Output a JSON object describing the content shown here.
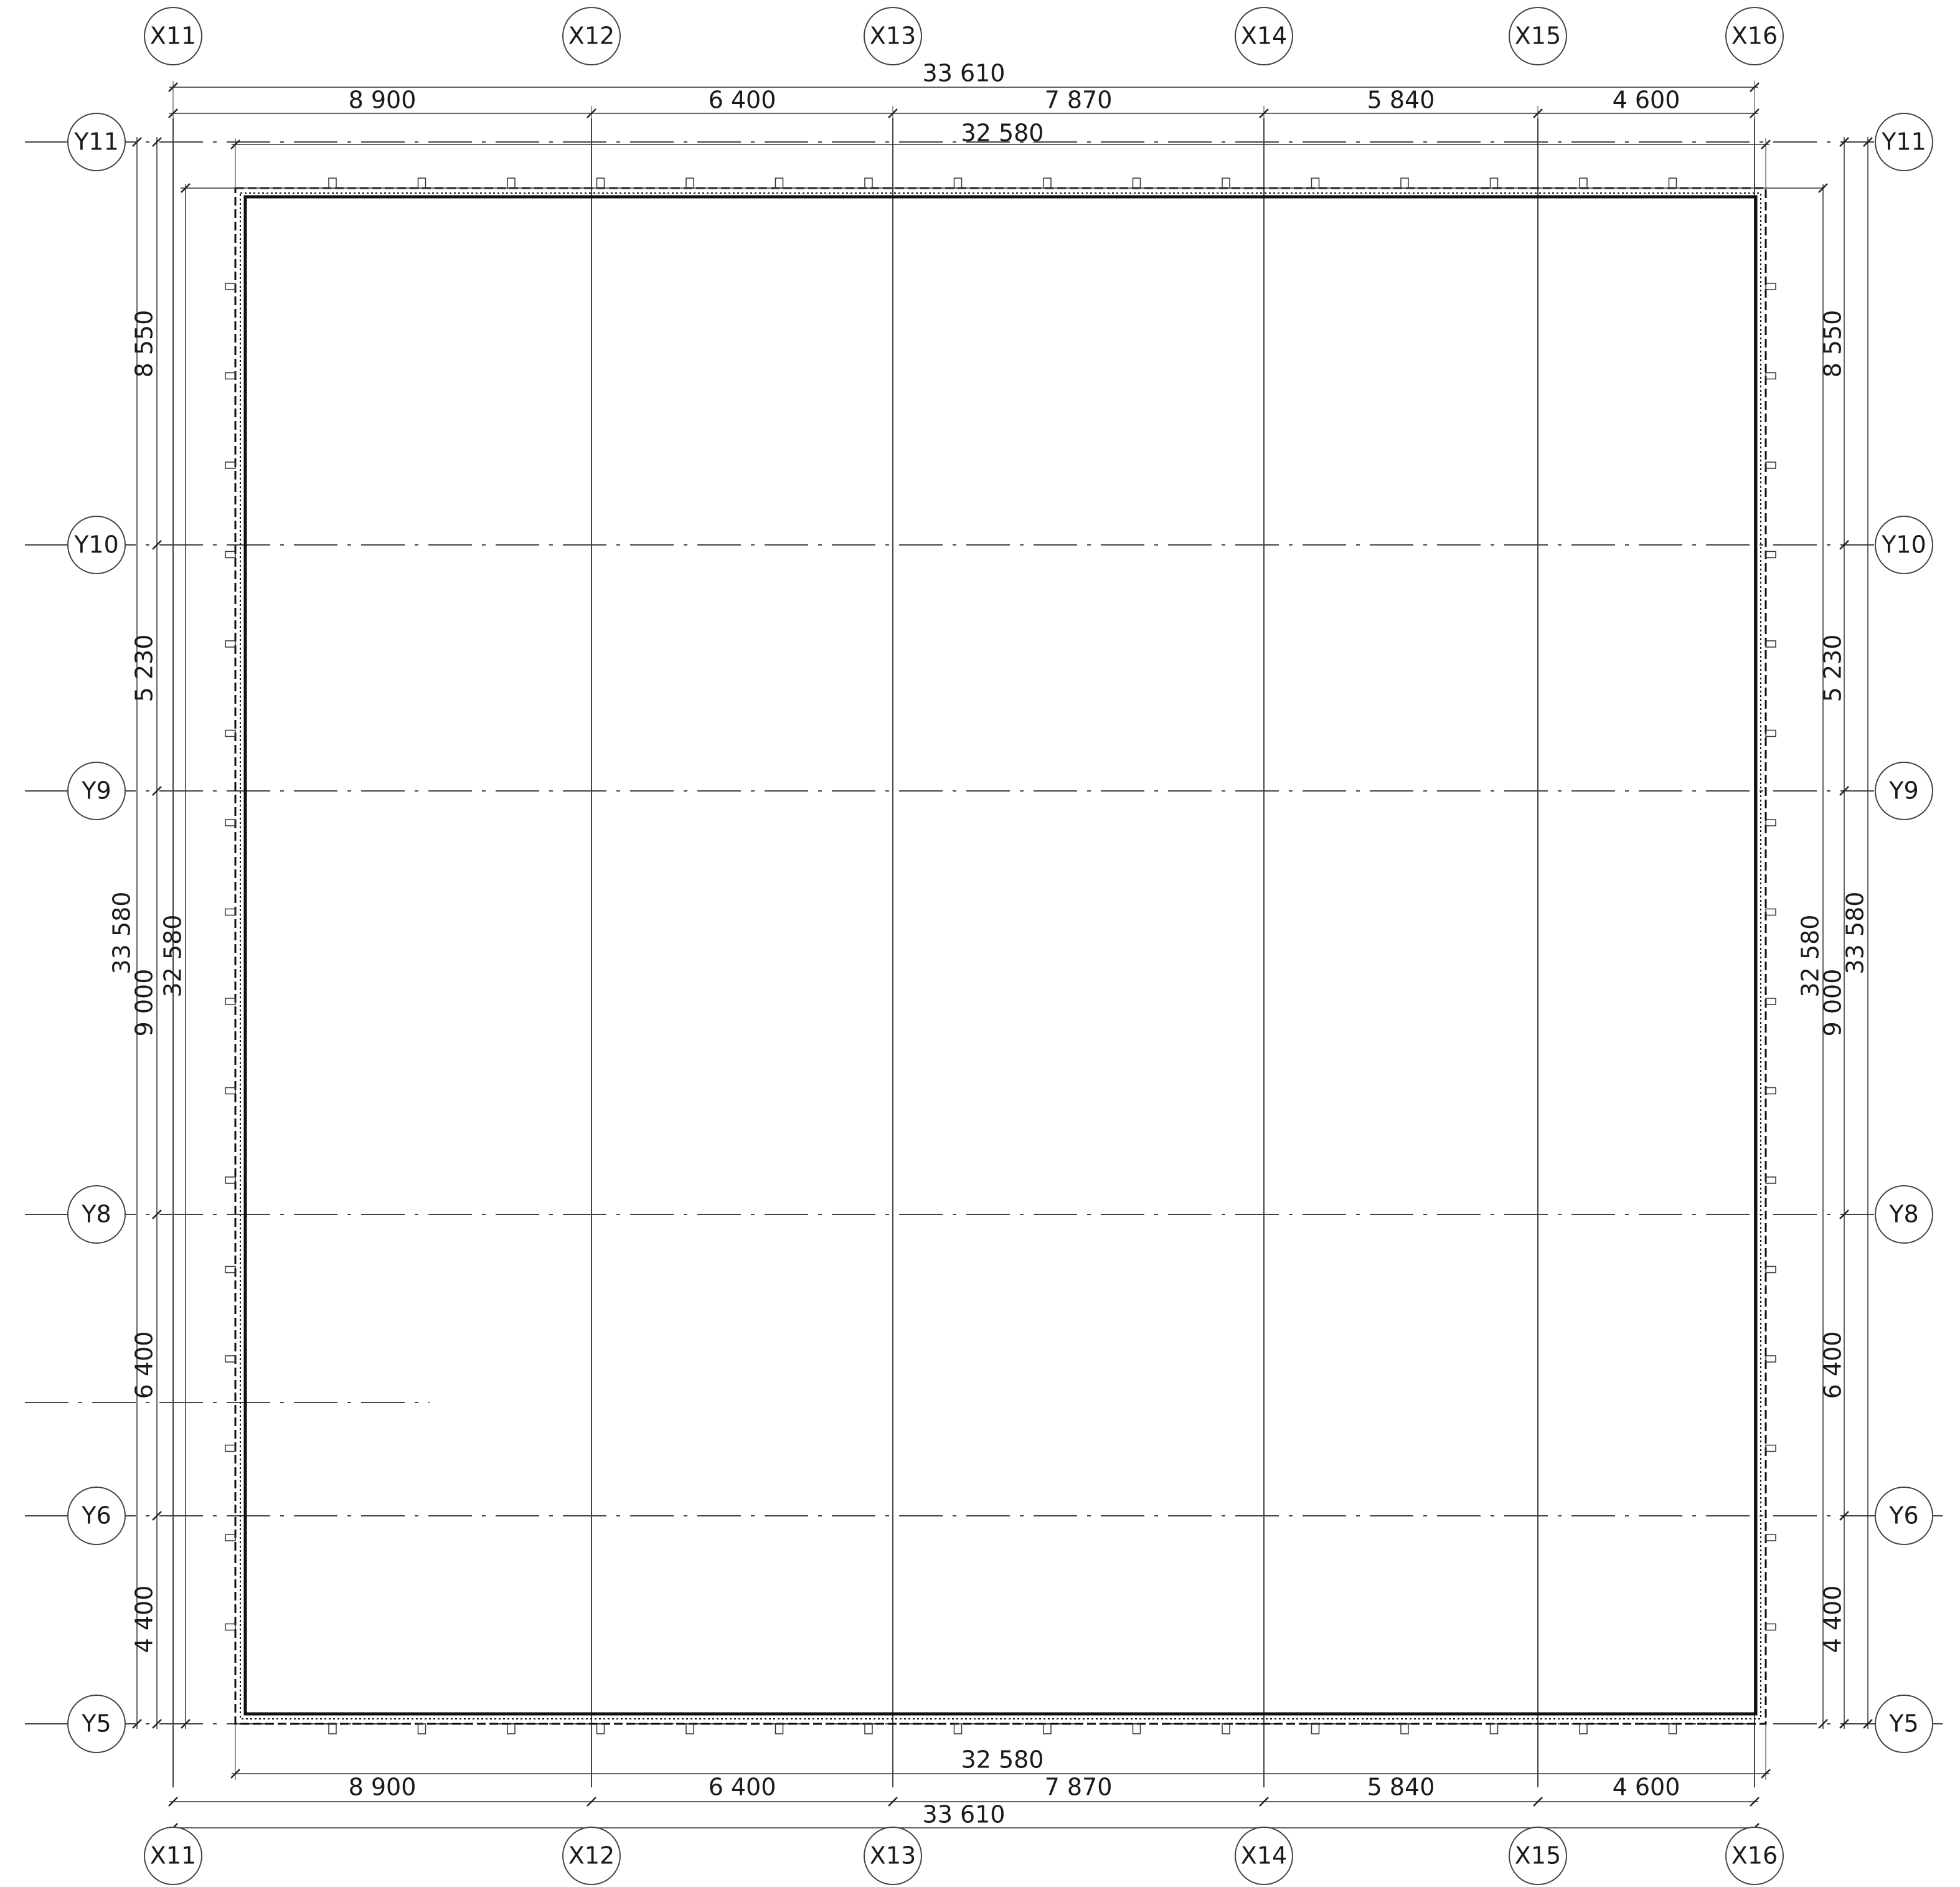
{
  "drawing": {
    "x_axes": [
      "X11",
      "X12",
      "X13",
      "X14",
      "X15",
      "X16"
    ],
    "y_axes": [
      "Y11",
      "Y10",
      "Y9",
      "Y8",
      "Y6",
      "Y5"
    ],
    "dims": {
      "x_total": "33 610",
      "x_inner": "32 580",
      "x_spans": [
        "8 900",
        "6 400",
        "7 870",
        "5 840",
        "4 600"
      ],
      "y_total": "33 580",
      "y_inner": "32 580",
      "y_spans": [
        "8 550",
        "5 230",
        "9 000",
        "6 400",
        "4 400"
      ]
    }
  }
}
